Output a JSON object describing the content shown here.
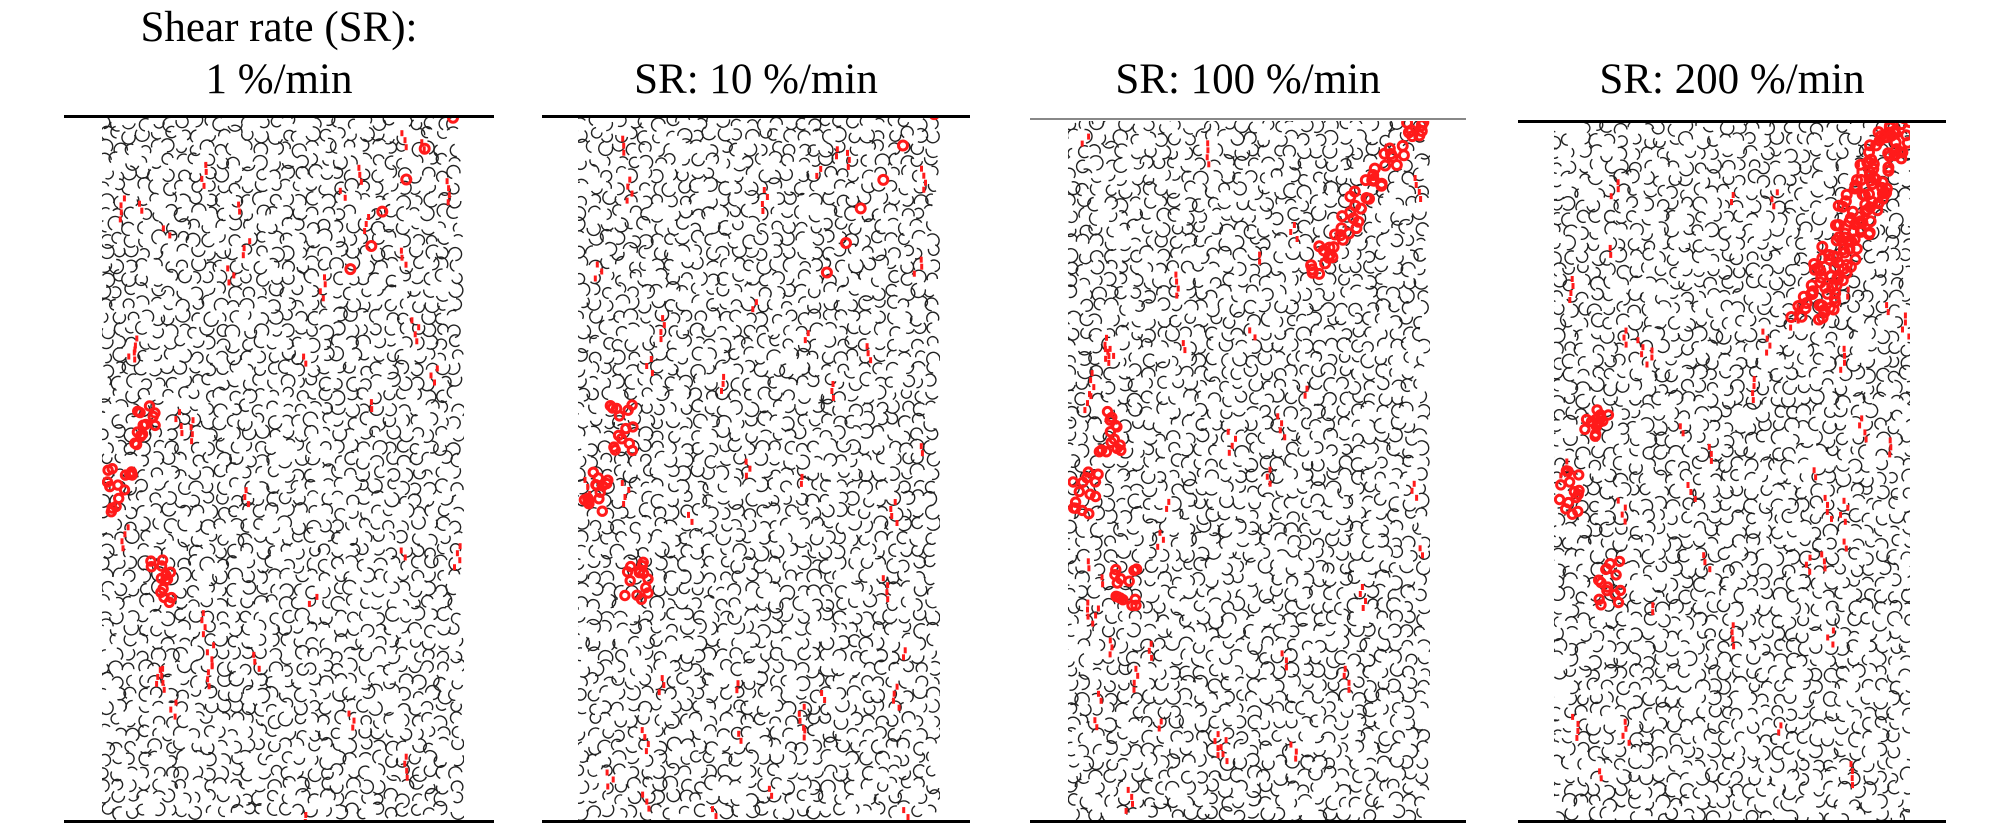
{
  "panels": [
    {
      "id": "sr1",
      "title_lines": [
        "Shear rate (SR):",
        "1 %/min"
      ],
      "slip_seed": 11,
      "intensity": 1
    },
    {
      "id": "sr10",
      "title_lines": [
        "SR: 10 %/min"
      ],
      "slip_seed": 29,
      "intensity": 1
    },
    {
      "id": "sr100",
      "title_lines": [
        "SR: 100 %/min"
      ],
      "slip_seed": 47,
      "intensity": 2
    },
    {
      "id": "sr200",
      "title_lines": [
        "SR: 200 %/min"
      ],
      "slip_seed": 83,
      "intensity": 3
    }
  ],
  "colors": {
    "particle": "#222222",
    "slip_particle": "#ff1a1a",
    "background": "#ffffff",
    "plate": "#000000"
  }
}
